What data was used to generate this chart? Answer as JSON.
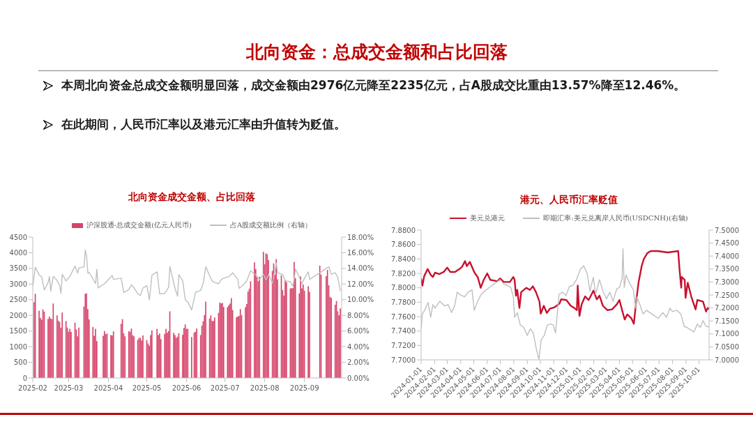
{
  "chart_data": [
    {
      "type": "other",
      "title": "北向资金：总成交金额和占比回落",
      "annotations": [
        "本周北向资金总成交金额明显回落，成交金额由2976亿元降至2235亿元，占A股成交比重由13.57%降至12.46%。",
        "在此期间，人民币汇率以及港元汇率由升值转为贬值。"
      ]
    },
    {
      "type": "bar",
      "title": "北向资金成交金额、占比回落",
      "legend": "top",
      "x": [
        "2025-02-06",
        "2025-02-07",
        "2025-02-10",
        "2025-02-11",
        "2025-02-12",
        "2025-02-13",
        "2025-02-14",
        "2025-02-17",
        "2025-02-18",
        "2025-02-19",
        "2025-02-20",
        "2025-02-21",
        "2025-02-24",
        "2025-02-25",
        "2025-02-26",
        "2025-02-27",
        "2025-02-28",
        "2025-03-03",
        "2025-03-04",
        "2025-03-05",
        "2025-03-06",
        "2025-03-07",
        "2025-03-10",
        "2025-03-11",
        "2025-03-12",
        "2025-03-13",
        "2025-03-17",
        "2025-03-18",
        "2025-03-19",
        "2025-03-20",
        "2025-03-21",
        "2025-03-24",
        "2025-03-25",
        "2025-03-26",
        "2025-03-27",
        "2025-04-01",
        "2025-04-02",
        "2025-04-03",
        "2025-04-04",
        "2025-04-07",
        "2025-04-08",
        "2025-04-09",
        "2025-04-15",
        "2025-04-16",
        "2025-04-17",
        "2025-04-18",
        "2025-04-21",
        "2025-04-22",
        "2025-04-23",
        "2025-04-24",
        "2025-04-25",
        "2025-04-28",
        "2025-04-29",
        "2025-04-30",
        "2025-05-01",
        "2025-05-02",
        "2025-05-05",
        "2025-05-06",
        "2025-05-07",
        "2025-05-08",
        "2025-05-09",
        "2025-05-13",
        "2025-05-14",
        "2025-05-15",
        "2025-05-16",
        "2025-05-19",
        "2025-05-20",
        "2025-05-21",
        "2025-05-22",
        "2025-05-23",
        "2025-05-26",
        "2025-05-27",
        "2025-05-28",
        "2025-05-29",
        "2025-05-30",
        "2025-06-02",
        "2025-06-03",
        "2025-06-04",
        "2025-06-05",
        "2025-06-06",
        "2025-06-09",
        "2025-06-11",
        "2025-06-12",
        "2025-06-13",
        "2025-06-16",
        "2025-06-17",
        "2025-06-18",
        "2025-06-19",
        "2025-06-20",
        "2025-06-23",
        "2025-06-24",
        "2025-06-25",
        "2025-06-26",
        "2025-06-27",
        "2025-06-30",
        "2025-07-01",
        "2025-07-02",
        "2025-07-03",
        "2025-07-04",
        "2025-07-07",
        "2025-07-08",
        "2025-07-09",
        "2025-07-10",
        "2025-07-11",
        "2025-07-14",
        "2025-07-15",
        "2025-07-16",
        "2025-07-17",
        "2025-07-18",
        "2025-07-21",
        "2025-07-22",
        "2025-07-23",
        "2025-07-24",
        "2025-07-25",
        "2025-07-28",
        "2025-07-29",
        "2025-07-30",
        "2025-07-31",
        "2025-08-01",
        "2025-08-04",
        "2025-08-05",
        "2025-08-06",
        "2025-08-07",
        "2025-08-08",
        "2025-08-11",
        "2025-08-12",
        "2025-08-13",
        "2025-08-14",
        "2025-08-15",
        "2025-08-18",
        "2025-08-19",
        "2025-08-20",
        "2025-08-21",
        "2025-08-22",
        "2025-08-25",
        "2025-08-26",
        "2025-08-27",
        "2025-08-28",
        "2025-08-29",
        "2025-09-01",
        "2025-09-02",
        "2025-09-03",
        "2025-09-04",
        "2025-09-05",
        "2025-09-08",
        "2025-09-09",
        "2025-09-17",
        "2025-09-18",
        "2025-09-22",
        "2025-09-23",
        "2025-09-24",
        "2025-09-25",
        "2025-09-26",
        "2025-09-29",
        "2025-09-30",
        "2025-10-01",
        "2025-10-02",
        "2025-10-03"
      ],
      "series": [
        {
          "type": "bar",
          "name": "沪深股通-总成交金额(亿元人民币)",
          "color": "#d6436a",
          "values": [
            2420,
            2690,
            2150,
            1920,
            1860,
            2190,
            2120,
            1890,
            1960,
            1900,
            1880,
            2380,
            2000,
            1830,
            1790,
            1600,
            2090,
            1820,
            1610,
            1480,
            1570,
            1470,
            1770,
            1550,
            1330,
            1610,
            2280,
            2690,
            2700,
            2200,
            1870,
            1630,
            1340,
            1570,
            1180,
            1350,
            1500,
            1400,
            1420,
            1370,
            1360,
            1490,
            1730,
            1880,
            1430,
            1330,
            1490,
            1480,
            1580,
            1370,
            1330,
            1220,
            1280,
            1280,
            1200,
            1360,
            1210,
            1100,
            1030,
            1370,
            1520,
            1570,
            1370,
            1420,
            1240,
            1410,
            1570,
            1440,
            1500,
            2130,
            1440,
            1370,
            1280,
            1320,
            1430,
            1380,
            1600,
            1710,
            1570,
            1570,
            1310,
            1450,
            1480,
            1580,
            1370,
            1670,
            1810,
            2010,
            2440,
            1900,
            2000,
            1820,
            1820,
            1930,
            2080,
            2410,
            2380,
            2400,
            2270,
            2260,
            2320,
            2380,
            2550,
            2170,
            1940,
            1960,
            1980,
            2200,
            2010,
            2260,
            2360,
            2760,
            2850,
            3090,
            3690,
            3480,
            3220,
            3090,
            3230,
            4030,
            3630,
            3980,
            3950,
            3770,
            3420,
            3660,
            3300,
            3800,
            3150,
            3280,
            2810,
            2630,
            3130,
            3060,
            2860,
            2870,
            2870,
            3710,
            3190,
            2700,
            3240,
            2860,
            2990,
            2790,
            2930,
            2750,
            3590,
            3300,
            3250,
            3450,
            2960,
            2590,
            2560,
            2340,
            2460,
            2130,
            2000,
            2220
          ]
        },
        {
          "type": "line",
          "name": "占A股成交额比例（右轴）",
          "color": "#bfbfbf",
          "axis": "y2",
          "x": [
            "2025-02-05",
            "2025-02-07",
            "2025-02-10",
            "2025-02-12",
            "2025-02-14",
            "2025-02-17",
            "2025-02-18",
            "2025-02-19",
            "2025-02-21",
            "2025-02-24",
            "2025-02-26",
            "2025-02-27",
            "2025-02-28",
            "2025-03-03",
            "2025-03-06",
            "2025-03-10",
            "2025-03-12",
            "2025-03-13",
            "2025-03-17",
            "2025-03-18",
            "2025-03-19",
            "2025-03-20",
            "2025-03-21",
            "2025-03-26",
            "2025-03-27",
            "2025-03-28",
            "2025-04-02",
            "2025-04-08",
            "2025-04-09",
            "2025-04-15",
            "2025-04-17",
            "2025-04-21",
            "2025-04-23",
            "2025-04-25",
            "2025-04-28",
            "2025-04-30",
            "2025-05-02",
            "2025-05-05",
            "2025-05-07",
            "2025-05-09",
            "2025-05-13",
            "2025-05-15",
            "2025-05-19",
            "2025-05-22",
            "2025-05-23",
            "2025-05-27",
            "2025-05-29",
            "2025-05-30",
            "2025-06-02",
            "2025-06-04",
            "2025-06-06",
            "2025-06-09",
            "2025-06-12",
            "2025-06-16",
            "2025-06-18",
            "2025-06-20",
            "2025-06-23",
            "2025-06-25",
            "2025-06-27",
            "2025-06-30",
            "2025-07-02",
            "2025-07-04",
            "2025-07-08",
            "2025-07-11",
            "2025-07-15",
            "2025-07-16",
            "2025-07-18",
            "2025-07-22",
            "2025-07-25",
            "2025-07-29",
            "2025-08-01",
            "2025-08-04",
            "2025-08-06",
            "2025-08-08",
            "2025-08-11",
            "2025-08-14",
            "2025-08-15",
            "2025-08-19",
            "2025-08-21",
            "2025-08-25",
            "2025-08-27",
            "2025-08-29",
            "2025-09-01",
            "2025-09-03",
            "2025-09-05",
            "2025-09-08",
            "2025-09-09",
            "2025-09-17",
            "2025-09-22",
            "2025-09-24",
            "2025-09-26",
            "2025-09-29",
            "2025-10-01",
            "2025-10-03"
          ],
          "values": [
            11.75,
            14.15,
            13.15,
            12.9,
            11.25,
            12.2,
            12.95,
            11.1,
            13.0,
            12.45,
            11.8,
            10.8,
            13.25,
            12.4,
            13.0,
            14.3,
            13.4,
            14.05,
            14.2,
            16.35,
            15.5,
            13.4,
            13.5,
            12.05,
            13.9,
            11.5,
            12.05,
            13.1,
            12.6,
            12.75,
            10.9,
            11.3,
            11.9,
            11.5,
            10.75,
            10.55,
            11.5,
            11.8,
            10.0,
            13.15,
            13.55,
            10.75,
            10.8,
            11.6,
            14.25,
            11.45,
            10.45,
            13.2,
            12.4,
            10.0,
            9.7,
            8.7,
            10.95,
            11.2,
            12.1,
            14.2,
            13.05,
            12.4,
            12.2,
            12.05,
            12.55,
            12.75,
            12.95,
            13.45,
            12.6,
            11.45,
            11.7,
            12.4,
            13.7,
            13.15,
            12.6,
            13.25,
            12.55,
            13.25,
            12.1,
            14.7,
            13.45,
            13.25,
            12.4,
            12.3,
            11.7,
            13.9,
            12.85,
            12.05,
            12.75,
            13.55,
            12.6,
            13.45,
            14.0,
            14.2,
            13.25,
            13.45,
            12.85,
            11.1
          ]
        }
      ],
      "xlim": [
        "2025-02-05",
        "2025-10-04"
      ],
      "xticks": [
        {
          "value": "2025-02-05",
          "label": "2025-02"
        },
        {
          "value": "2025-03-05",
          "label": "2025-03"
        },
        {
          "value": "2025-04-05",
          "label": "2025-04"
        },
        {
          "value": "2025-05-05",
          "label": "2025-05"
        },
        {
          "value": "2025-06-05",
          "label": "2025-06"
        },
        {
          "value": "2025-07-05",
          "label": "2025-07"
        },
        {
          "value": "2025-08-05",
          "label": "2025-08"
        },
        {
          "value": "2025-09-05",
          "label": "2025-09"
        }
      ],
      "ylim": [
        0,
        4500
      ],
      "yticks": [
        0,
        500,
        1000,
        1500,
        2000,
        2500,
        3000,
        3500,
        4000,
        4500
      ],
      "y2lim": [
        0,
        18
      ],
      "y2ticks": [
        {
          "value": 0,
          "label": "0.00%"
        },
        {
          "value": 2,
          "label": "2.00%"
        },
        {
          "value": 4,
          "label": "4.00%"
        },
        {
          "value": 6,
          "label": "6.00%"
        },
        {
          "value": 8,
          "label": "8.00%"
        },
        {
          "value": 10,
          "label": "10.00%"
        },
        {
          "value": 12,
          "label": "12.00%"
        },
        {
          "value": 14,
          "label": "14.00%"
        },
        {
          "value": 16,
          "label": "16.00%"
        },
        {
          "value": 18,
          "label": "18.00%"
        }
      ]
    },
    {
      "type": "line",
      "title": "港元、人民币汇率贬值",
      "legend": "top",
      "series": [
        {
          "name": "美元兑港元",
          "color": "#c8102e",
          "x": [
            "2024-01-01",
            "2024-01-04",
            "2024-01-08",
            "2024-01-16",
            "2024-01-23",
            "2024-01-28",
            "2024-02-02",
            "2024-02-12",
            "2024-02-22",
            "2024-03-01",
            "2024-03-08",
            "2024-03-19",
            "2024-03-29",
            "2024-04-04",
            "2024-04-11",
            "2024-04-15",
            "2024-04-22",
            "2024-05-02",
            "2024-05-05",
            "2024-05-10",
            "2024-05-17",
            "2024-05-24",
            "2024-06-01",
            "2024-06-08",
            "2024-06-17",
            "2024-06-24",
            "2024-07-01",
            "2024-07-09",
            "2024-07-23",
            "2024-07-31",
            "2024-08-03",
            "2024-08-06",
            "2024-08-09",
            "2024-08-14",
            "2024-08-18",
            "2024-08-30",
            "2024-09-07",
            "2024-09-14",
            "2024-09-21",
            "2024-09-29",
            "2024-10-02",
            "2024-10-09",
            "2024-10-16",
            "2024-10-23",
            "2024-11-03",
            "2024-11-14",
            "2024-11-18",
            "2024-11-30",
            "2024-12-10",
            "2024-12-18",
            "2024-12-24",
            "2024-12-26",
            "2024-12-30",
            "2025-01-04",
            "2025-01-12",
            "2025-01-20",
            "2025-01-27",
            "2025-01-31",
            "2025-02-08",
            "2025-02-14",
            "2025-02-22",
            "2025-03-04",
            "2025-03-15",
            "2025-03-26",
            "2025-04-01",
            "2025-04-07",
            "2025-04-13",
            "2025-04-19",
            "2025-04-28",
            "2025-05-04",
            "2025-05-10",
            "2025-05-15",
            "2025-05-22",
            "2025-05-27",
            "2025-06-04",
            "2025-06-12",
            "2025-06-28",
            "2025-07-21",
            "2025-08-14",
            "2025-08-17",
            "2025-08-21",
            "2025-08-22",
            "2025-08-29",
            "2025-08-31",
            "2025-09-05",
            "2025-09-13",
            "2025-09-23",
            "2025-09-27",
            "2025-10-10",
            "2025-10-17",
            "2025-10-21",
            "2025-10-24"
          ],
          "values": [
            7.813,
            7.803,
            7.816,
            7.826,
            7.818,
            7.815,
            7.821,
            7.819,
            7.822,
            7.828,
            7.822,
            7.822,
            7.826,
            7.829,
            7.837,
            7.83,
            7.836,
            7.822,
            7.819,
            7.815,
            7.8,
            7.811,
            7.82,
            7.811,
            7.81,
            7.809,
            7.813,
            7.808,
            7.808,
            7.815,
            7.811,
            7.789,
            7.797,
            7.772,
            7.794,
            7.8,
            7.797,
            7.802,
            7.794,
            7.781,
            7.764,
            7.775,
            7.765,
            7.771,
            7.773,
            7.778,
            7.784,
            7.783,
            7.775,
            7.772,
            7.769,
            7.803,
            7.761,
            7.777,
            7.788,
            7.783,
            7.791,
            7.796,
            7.784,
            7.789,
            7.775,
            7.769,
            7.77,
            7.777,
            7.783,
            7.769,
            7.756,
            7.763,
            7.758,
            7.75,
            7.784,
            7.808,
            7.83,
            7.84,
            7.848,
            7.851,
            7.851,
            7.849,
            7.851,
            7.826,
            7.8,
            7.815,
            7.811,
            7.786,
            7.807,
            7.788,
            7.77,
            7.783,
            7.781,
            7.767,
            7.772,
            7.77
          ]
        },
        {
          "name": "即期汇率:美元兑离岸人民币(USDCNH)(右轴)",
          "color": "#bfbfbf",
          "axis": "y2",
          "x": [
            "2024-01-01",
            "2024-01-04",
            "2024-01-09",
            "2024-01-17",
            "2024-01-23",
            "2024-01-28",
            "2024-02-02",
            "2024-02-13",
            "2024-02-24",
            "2024-03-03",
            "2024-03-11",
            "2024-03-18",
            "2024-03-24",
            "2024-03-30",
            "2024-04-10",
            "2024-04-18",
            "2024-04-27",
            "2024-05-02",
            "2024-05-10",
            "2024-05-18",
            "2024-05-26",
            "2024-06-06",
            "2024-06-19",
            "2024-07-01",
            "2024-07-09",
            "2024-07-17",
            "2024-07-25",
            "2024-07-31",
            "2024-08-03",
            "2024-08-09",
            "2024-08-16",
            "2024-08-24",
            "2024-09-01",
            "2024-09-08",
            "2024-09-15",
            "2024-09-22",
            "2024-09-28",
            "2024-10-03",
            "2024-10-10",
            "2024-10-17",
            "2024-10-25",
            "2024-10-31",
            "2024-11-05",
            "2024-11-13",
            "2024-11-21",
            "2024-11-29",
            "2024-12-07",
            "2024-12-15",
            "2024-12-23",
            "2025-01-01",
            "2025-01-09",
            "2025-01-17",
            "2025-01-23",
            "2025-01-31",
            "2025-02-05",
            "2025-02-14",
            "2025-02-22",
            "2025-03-02",
            "2025-03-10",
            "2025-03-17",
            "2025-03-26",
            "2025-04-01",
            "2025-04-07",
            "2025-04-09",
            "2025-04-12",
            "2025-04-16",
            "2025-04-24",
            "2025-05-03",
            "2025-05-08",
            "2025-05-11",
            "2025-05-19",
            "2025-05-25",
            "2025-06-02",
            "2025-06-10",
            "2025-06-18",
            "2025-06-29",
            "2025-07-10",
            "2025-07-18",
            "2025-07-26",
            "2025-08-01",
            "2025-08-11",
            "2025-08-20",
            "2025-08-28",
            "2025-09-03",
            "2025-09-11",
            "2025-09-19",
            "2025-09-27",
            "2025-10-04",
            "2025-10-10",
            "2025-10-17",
            "2025-10-24"
          ],
          "values": [
            7.12,
            7.177,
            7.191,
            7.221,
            7.164,
            7.213,
            7.199,
            7.226,
            7.208,
            7.213,
            7.182,
            7.208,
            7.261,
            7.252,
            7.243,
            7.261,
            7.27,
            7.191,
            7.226,
            7.252,
            7.265,
            7.279,
            7.296,
            7.309,
            7.292,
            7.287,
            7.279,
            7.243,
            7.164,
            7.182,
            7.134,
            7.125,
            7.094,
            7.12,
            7.103,
            7.041,
            7.002,
            7.077,
            7.094,
            7.134,
            7.138,
            7.134,
            7.103,
            7.252,
            7.261,
            7.248,
            7.283,
            7.287,
            7.309,
            7.349,
            7.362,
            7.331,
            7.265,
            7.318,
            7.252,
            7.309,
            7.265,
            7.235,
            7.261,
            7.226,
            7.274,
            7.279,
            7.314,
            7.428,
            7.279,
            7.327,
            7.296,
            7.27,
            7.199,
            7.243,
            7.208,
            7.177,
            7.191,
            7.182,
            7.173,
            7.16,
            7.182,
            7.164,
            7.199,
            7.186,
            7.191,
            7.177,
            7.129,
            7.125,
            7.116,
            7.107,
            7.138,
            7.125,
            7.151,
            7.129,
            7.127
          ]
        }
      ],
      "xlim": [
        "2024-01-01",
        "2025-10-24"
      ],
      "xticks": [
        "2024-01-01",
        "2024-02-01",
        "2024-03-01",
        "2024-04-01",
        "2024-05-01",
        "2024-06-01",
        "2024-07-01",
        "2024-08-01",
        "2024-09-01",
        "2024-10-01",
        "2024-11-01",
        "2024-12-01",
        "2025-01-01",
        "2025-02-01",
        "2025-03-01",
        "2025-04-01",
        "2025-05-01",
        "2025-06-01",
        "2025-07-01",
        "2025-08-01",
        "2025-09-01",
        "2025-10-01"
      ],
      "ylim": [
        7.7,
        7.88
      ],
      "yticks": [
        {
          "value": 7.7,
          "label": "7.7000"
        },
        {
          "value": 7.72,
          "label": "7.7200"
        },
        {
          "value": 7.74,
          "label": "7.7400"
        },
        {
          "value": 7.76,
          "label": "7.7600"
        },
        {
          "value": 7.78,
          "label": "7.7800"
        },
        {
          "value": 7.8,
          "label": "7.8000"
        },
        {
          "value": 7.82,
          "label": "7.8200"
        },
        {
          "value": 7.84,
          "label": "7.8400"
        },
        {
          "value": 7.86,
          "label": "7.8600"
        },
        {
          "value": 7.88,
          "label": "7.8800"
        }
      ],
      "y2lim": [
        7.0,
        7.5
      ],
      "y2ticks": [
        {
          "value": 7.0,
          "label": "7.0000"
        },
        {
          "value": 7.05,
          "label": "7.0500"
        },
        {
          "value": 7.1,
          "label": "7.1000"
        },
        {
          "value": 7.15,
          "label": "7.1500"
        },
        {
          "value": 7.2,
          "label": "7.2000"
        },
        {
          "value": 7.25,
          "label": "7.2500"
        },
        {
          "value": 7.3,
          "label": "7.3000"
        },
        {
          "value": 7.35,
          "label": "7.3500"
        },
        {
          "value": 7.4,
          "label": "7.4000"
        },
        {
          "value": 7.45,
          "label": "7.4500"
        },
        {
          "value": 7.5,
          "label": "7.5000"
        }
      ]
    }
  ]
}
